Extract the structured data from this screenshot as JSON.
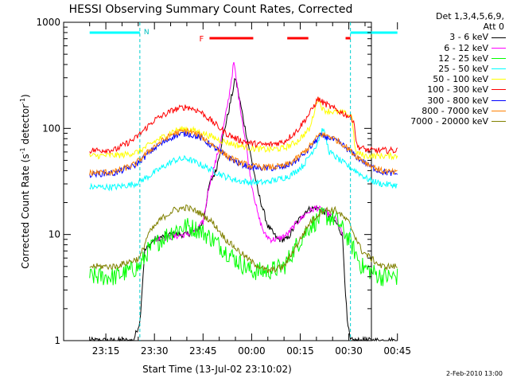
{
  "chart_data": {
    "type": "line",
    "title": "HESSI Observing Summary Count Rates, Corrected",
    "xlabel": "Start Time (13-Jul-02 23:10:02)",
    "ylabel": "Corrected Count Rate (s⁻¹ detector⁻¹)",
    "ylabel_main": "Corrected Count Rate (s",
    "ylabel_sup1": "-1",
    "ylabel_mid": " detector",
    "ylabel_sup2": "-1",
    "ylabel_end": ")",
    "yscale": "log",
    "ylim": [
      1,
      1000
    ],
    "xlim_minutes": [
      -8.03,
      86.97
    ],
    "y_ticks": [
      "1",
      "10",
      "100",
      "1000"
    ],
    "y_tick_values": [
      1,
      10,
      100,
      1000
    ],
    "x_ticks": [
      "23:15",
      "23:30",
      "23:45",
      "00:00",
      "00:15",
      "00:30",
      "00:45"
    ],
    "x_tick_minutes": [
      5,
      20,
      35,
      50,
      65,
      80,
      95
    ],
    "x_minute_origin": "23:10",
    "grid": false,
    "legend_position": "right",
    "legend_header": [
      "Det 1,3,4,5,6,9,",
      "Att 0"
    ],
    "night_label": "N",
    "flare_label": "F",
    "night_segments": [
      [
        0,
        15.5
      ],
      [
        80.5,
        95
      ]
    ],
    "flare_segments": [
      [
        37,
        50.5
      ],
      [
        61,
        67.5
      ],
      [
        79,
        80.5
      ]
    ],
    "eclipse_markers": [
      15.5,
      80.5
    ],
    "series": [
      {
        "name": "3 - 6 keV",
        "color": "#000000",
        "x": [
          0,
          13.5,
          15.5,
          17,
          20,
          25,
          27,
          30,
          33,
          35,
          37,
          39,
          41,
          43,
          45,
          47.5,
          50,
          52,
          55,
          58,
          61,
          64,
          67,
          70,
          73,
          76,
          78,
          79.5,
          80.5,
          82,
          85,
          95
        ],
        "y": [
          1,
          1,
          1.5,
          7,
          9,
          10,
          10,
          10,
          11,
          13,
          30,
          40,
          80,
          150,
          300,
          120,
          50,
          25,
          12,
          9,
          9,
          13,
          17,
          18,
          16,
          13,
          10,
          1.5,
          1,
          1,
          1,
          1
        ]
      },
      {
        "name": "6 - 12 keV",
        "color": "#ff00ff",
        "x": [
          20,
          30,
          33,
          35,
          37,
          39,
          41,
          43,
          44.5,
          46,
          48,
          50,
          52,
          54,
          56,
          58,
          61,
          64,
          67,
          70,
          73,
          76,
          78
        ],
        "y": [
          9,
          10,
          11,
          13,
          30,
          50,
          90,
          200,
          420,
          200,
          80,
          30,
          15,
          10,
          9,
          9,
          10,
          13,
          16,
          18,
          16,
          14,
          10
        ]
      },
      {
        "name": "12 - 25 keV",
        "color": "#00ff00",
        "x": [
          0,
          8,
          15.5,
          18,
          22,
          26,
          30,
          34,
          38,
          42,
          46,
          50,
          55,
          60,
          64,
          68,
          72,
          76,
          80,
          84,
          90,
          95
        ],
        "y": [
          4,
          4,
          5,
          7,
          9,
          11,
          12,
          11,
          9,
          7,
          5.5,
          4.5,
          4.5,
          5,
          8,
          12,
          15,
          14,
          9,
          5,
          4,
          4
        ]
      },
      {
        "name": "25 - 50 keV",
        "color": "#00ffff",
        "x": [
          0,
          8,
          14,
          18,
          22,
          26,
          30,
          34,
          38,
          42,
          46,
          50,
          54,
          58,
          62,
          66,
          70,
          72,
          74,
          78,
          82,
          86,
          90,
          95
        ],
        "y": [
          28,
          28,
          30,
          35,
          42,
          50,
          52,
          46,
          40,
          35,
          32,
          31,
          31,
          33,
          36,
          45,
          70,
          100,
          60,
          48,
          40,
          33,
          30,
          29
        ]
      },
      {
        "name": "50 - 100 keV",
        "color": "#ffff00",
        "x": [
          0,
          10,
          15,
          20,
          26,
          30,
          35,
          40,
          45,
          50,
          55,
          60,
          64,
          68,
          70.5,
          72,
          74,
          78,
          81,
          82,
          85,
          90,
          95
        ],
        "y": [
          55,
          56,
          60,
          75,
          95,
          100,
          90,
          78,
          70,
          65,
          63,
          65,
          75,
          100,
          200,
          150,
          145,
          140,
          130,
          60,
          55,
          55,
          55
        ]
      },
      {
        "name": "100 - 300 keV",
        "color": "#ff0000",
        "x": [
          0,
          8,
          14,
          20,
          26,
          30,
          34,
          38,
          42,
          46,
          50,
          55,
          60,
          64,
          68,
          70.5,
          72,
          76,
          80,
          81.5,
          82.5,
          86,
          90,
          95
        ],
        "y": [
          62,
          63,
          80,
          120,
          150,
          160,
          145,
          115,
          90,
          78,
          72,
          70,
          75,
          95,
          140,
          190,
          175,
          150,
          130,
          120,
          68,
          62,
          62,
          62
        ]
      },
      {
        "name": "300 - 800 keV",
        "color": "#0000ff",
        "x": [
          0,
          8,
          14,
          20,
          26,
          30,
          34,
          38,
          42,
          46,
          50,
          55,
          60,
          64,
          68,
          71,
          74,
          78,
          82,
          86,
          90,
          95
        ],
        "y": [
          37,
          38,
          45,
          65,
          85,
          90,
          82,
          68,
          55,
          47,
          43,
          42,
          43,
          50,
          65,
          85,
          82,
          70,
          55,
          45,
          39,
          37
        ]
      },
      {
        "name": "800 - 7000 keV",
        "color": "#ff8000",
        "x": [
          0,
          8,
          14,
          20,
          26,
          30,
          34,
          38,
          42,
          46,
          50,
          55,
          60,
          64,
          68,
          71,
          74,
          78,
          82,
          86,
          90,
          95
        ],
        "y": [
          38,
          39,
          46,
          68,
          90,
          95,
          86,
          70,
          56,
          48,
          44,
          43,
          44,
          52,
          68,
          88,
          85,
          72,
          56,
          46,
          40,
          38
        ]
      },
      {
        "name": "7000 - 20000 keV",
        "color": "#808000",
        "x": [
          0,
          8,
          15.5,
          18,
          22,
          26,
          30,
          34,
          38,
          42,
          46,
          50,
          55,
          60,
          64,
          68,
          72,
          76,
          80,
          84,
          90,
          95
        ],
        "y": [
          5,
          5,
          6,
          10,
          14,
          17,
          18,
          16,
          13,
          9,
          7,
          5.5,
          4.5,
          5,
          8,
          13,
          17,
          17,
          13,
          7,
          5,
          5
        ]
      }
    ]
  },
  "footer": {
    "date": "2-Feb-2010 13:00"
  }
}
